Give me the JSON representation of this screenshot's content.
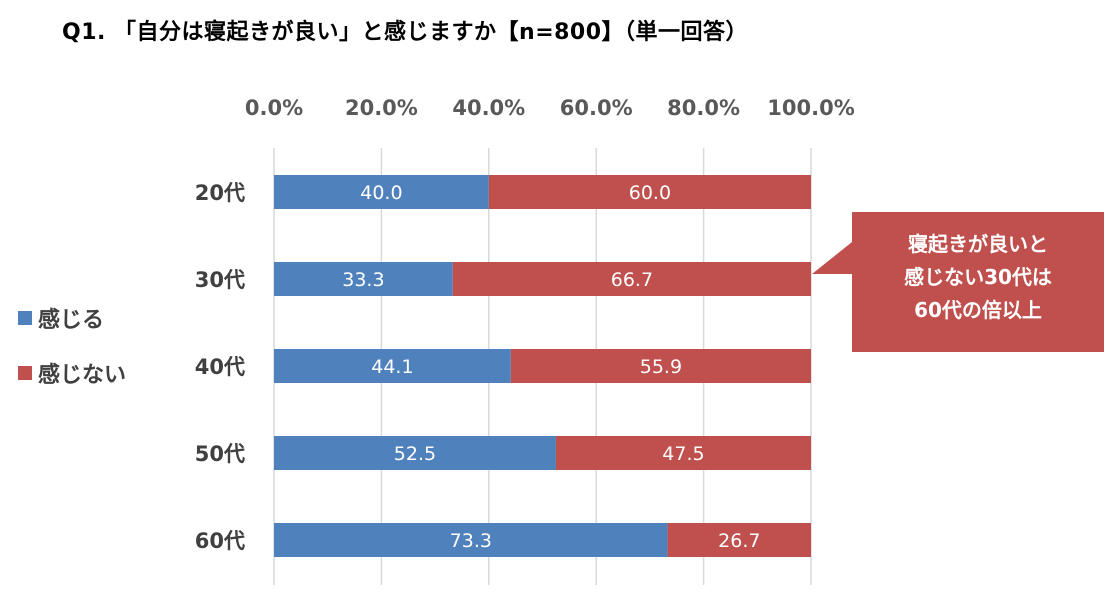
{
  "title": "Q1. 「自分は寝起きが良い」と感じますか【n=800】（単一回答）",
  "legend": [
    {
      "label": "感じる",
      "color": "#4F81BD"
    },
    {
      "label": "感じない",
      "color": "#C0504D"
    }
  ],
  "callout": {
    "lines": [
      "寝起きが良いと",
      "感じない30代は",
      "60代の倍以上"
    ],
    "color": "#C0504D"
  },
  "chart_data": {
    "type": "bar",
    "orientation": "horizontal",
    "stacked": true,
    "categories": [
      "20代",
      "30代",
      "40代",
      "50代",
      "60代"
    ],
    "series": [
      {
        "name": "感じる",
        "values": [
          40.0,
          33.3,
          44.1,
          52.5,
          73.3
        ],
        "color": "#4F81BD"
      },
      {
        "name": "感じない",
        "values": [
          60.0,
          66.7,
          55.9,
          47.5,
          26.7
        ],
        "color": "#C0504D"
      }
    ],
    "xlim": [
      0,
      100
    ],
    "xticks": [
      "0.0%",
      "20.0%",
      "40.0%",
      "60.0%",
      "80.0%",
      "100.0%"
    ],
    "x_axis_position": "top",
    "grid": true,
    "legend_position": "left"
  }
}
